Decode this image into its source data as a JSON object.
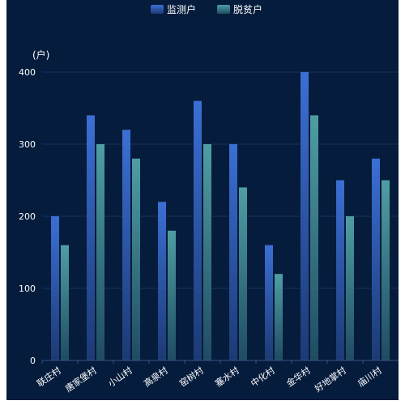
{
  "chart_data": {
    "type": "bar",
    "ylabel": "(户)",
    "ylim": [
      0,
      400
    ],
    "yticks": [
      0,
      100,
      200,
      300,
      400
    ],
    "legend_position": "top-center",
    "grid": true,
    "categories": [
      "联庄村",
      "唐家堡村",
      "小山村",
      "高泉村",
      "窑树村",
      "塞水村",
      "中化村",
      "金华村",
      "好地掌村",
      "庙川村"
    ],
    "series": [
      {
        "name": "监测户",
        "values": [
          200,
          340,
          320,
          220,
          360,
          300,
          160,
          400,
          250,
          280
        ]
      },
      {
        "name": "脱贫户",
        "values": [
          160,
          300,
          280,
          180,
          300,
          240,
          120,
          340,
          200,
          250
        ]
      }
    ]
  },
  "colors": {
    "background": "#061c3d",
    "monitor_top": "#3b6fd4",
    "monitor_bottom": "#1c3a74",
    "poverty_top": "#4f9ea3",
    "poverty_bottom": "#1f4c63",
    "text": "#ffffff",
    "grid": "#173258"
  }
}
